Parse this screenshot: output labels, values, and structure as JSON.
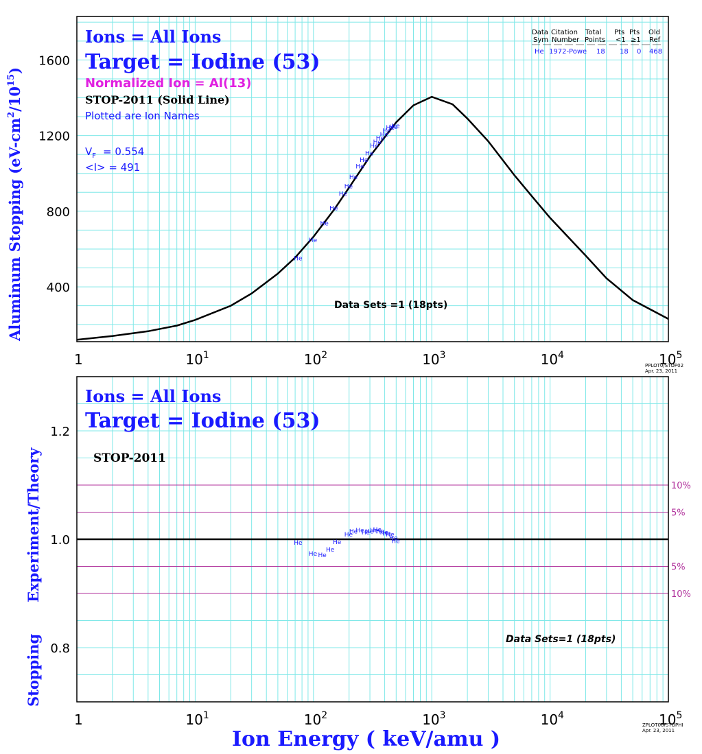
{
  "chart_data": [
    {
      "type": "line",
      "ylabel_main": "Aluminum Stopping (eV-cm",
      "ylabel_sup1": "2",
      "ylabel_mid": "/10",
      "ylabel_sup2": "15",
      "ylabel_end": ")",
      "x_scale": "log",
      "xlim": [
        1,
        100000
      ],
      "ylim": [
        110,
        1830
      ],
      "y_ticks": [
        "400",
        "800",
        "1200",
        "1600"
      ],
      "grid": true,
      "info": {
        "ions": "Ions = All Ions",
        "target": "Target = Iodine (53)",
        "normalized": "Normalized Ion = Al(13)",
        "stop": "STOP-2011 (Solid Line)",
        "plotted": "Plotted are Ion Names",
        "vf_label": "V",
        "vf_sub": "F",
        "vf_value": "= 0.554",
        "mean_i": "<I> = 491",
        "data_sets": "Data Sets =1 (18pts)"
      },
      "legend_table": {
        "header1": [
          "Data",
          "Citation",
          "Total",
          "Pts",
          "Pts",
          "Old"
        ],
        "header2": [
          "Sym",
          "Number",
          "Points",
          "<1",
          "≥1",
          "Ref"
        ],
        "row": [
          "He",
          "1972-Powe",
          "18",
          "18",
          "0",
          "468"
        ]
      },
      "stamp": [
        "PPLOT0/STOP02",
        "Apr. 23, 2011"
      ],
      "series": [
        {
          "kind": "theory_curve",
          "x": [
            1,
            2,
            4,
            7,
            10,
            20,
            30,
            50,
            70,
            100,
            150,
            200,
            300,
            500,
            700,
            1000,
            1500,
            2000,
            3000,
            5000,
            7000,
            10000,
            20000,
            30000,
            50000,
            100000
          ],
          "y": [
            120,
            140,
            165,
            195,
            225,
            300,
            365,
            470,
            555,
            665,
            810,
            925,
            1090,
            1270,
            1360,
            1405,
            1365,
            1290,
            1170,
            990,
            880,
            765,
            565,
            445,
            330,
            230
          ]
        },
        {
          "name": "He",
          "kind": "data_points",
          "x": [
            75,
            100,
            125,
            150,
            180,
            200,
            220,
            250,
            270,
            300,
            330,
            350,
            370,
            400,
            420,
            450,
            480,
            500
          ],
          "y": [
            555,
            650,
            740,
            820,
            895,
            935,
            985,
            1040,
            1075,
            1110,
            1150,
            1170,
            1190,
            1210,
            1230,
            1245,
            1250,
            1255
          ]
        }
      ]
    },
    {
      "type": "scatter",
      "ylabel_a": "Stopping",
      "ylabel_b": "Experiment/Theory",
      "xlabel": "Ion Energy ( keV/amu )",
      "x_scale": "log",
      "xlim": [
        1,
        100000
      ],
      "ylim": [
        0.7,
        1.3
      ],
      "y_ticks": [
        "0.8",
        "1.0",
        "1.2"
      ],
      "x_tick_labels": [
        "1",
        "10",
        "10",
        "10",
        "10",
        "10"
      ],
      "x_tick_sups": [
        "",
        "1",
        "2",
        "3",
        "4",
        "5"
      ],
      "grid": true,
      "info": {
        "ions": "Ions = All Ions",
        "target": "Target = Iodine (53)",
        "stop": "STOP-2011",
        "data_sets": "Data Sets=1 (18pts)"
      },
      "reference_lines": [
        {
          "y": 1.1,
          "label": "10%"
        },
        {
          "y": 1.05,
          "label": "5%"
        },
        {
          "y": 0.95,
          "label": "5%"
        },
        {
          "y": 0.9,
          "label": "10%"
        }
      ],
      "stamp": [
        "ZPLOT00/STOPHI",
        "Apr. 23, 2011"
      ],
      "series": [
        {
          "name": "He",
          "x": [
            75,
            100,
            120,
            140,
            160,
            200,
            220,
            250,
            280,
            300,
            330,
            350,
            370,
            400,
            420,
            450,
            480,
            500
          ],
          "y": [
            0.995,
            0.975,
            0.972,
            0.982,
            0.996,
            1.01,
            1.016,
            1.018,
            1.014,
            1.016,
            1.018,
            1.019,
            1.016,
            1.014,
            1.012,
            1.01,
            1.004,
            0.998
          ]
        }
      ]
    }
  ],
  "colors": {
    "grid": "#7fe8e8",
    "axis": "#000000",
    "data": "#1a1aff",
    "title_blue": "#1a1aff",
    "normalized_magenta": "#e020e0",
    "ref_lines": "#b0309b"
  }
}
